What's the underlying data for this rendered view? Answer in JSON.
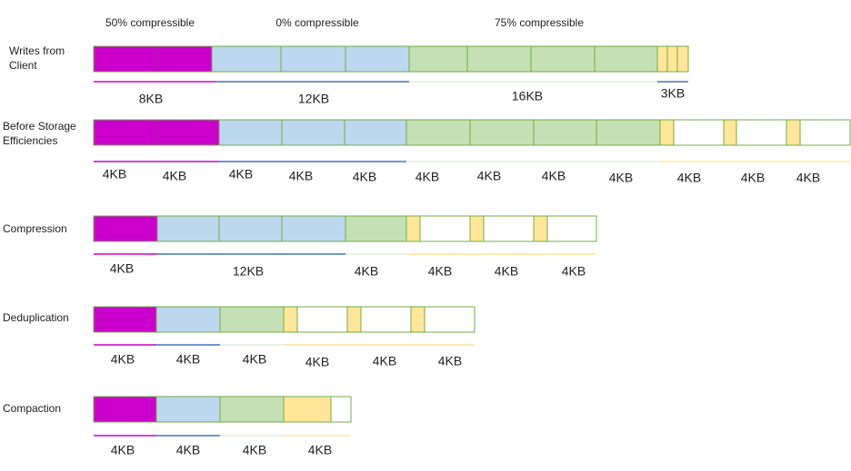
{
  "headers": [
    "50% compressible",
    "0% compressible",
    "75% compressible"
  ],
  "rows": [
    {
      "label": [
        "Writes from",
        "Client"
      ],
      "sizes": [
        "8KB",
        "12KB",
        "16KB",
        "3KB"
      ]
    },
    {
      "label": [
        "Before Storage",
        "Efficiencies"
      ],
      "sizes": [
        "4KB",
        "4KB",
        "4KB",
        "4KB",
        "4KB",
        "4KB",
        "4KB",
        "4KB",
        "4KB",
        "4KB",
        "4KB",
        "4KB"
      ]
    },
    {
      "label": [
        "Compression"
      ],
      "sizes": [
        "4KB",
        "12KB",
        "4KB",
        "4KB",
        "4KB",
        "4KB"
      ]
    },
    {
      "label": [
        "Deduplication"
      ],
      "sizes": [
        "4KB",
        "4KB",
        "4KB",
        "4KB",
        "4KB",
        "4KB"
      ]
    },
    {
      "label": [
        "Compaction"
      ],
      "sizes": [
        "4KB",
        "4KB",
        "4KB",
        "4KB"
      ]
    }
  ]
}
